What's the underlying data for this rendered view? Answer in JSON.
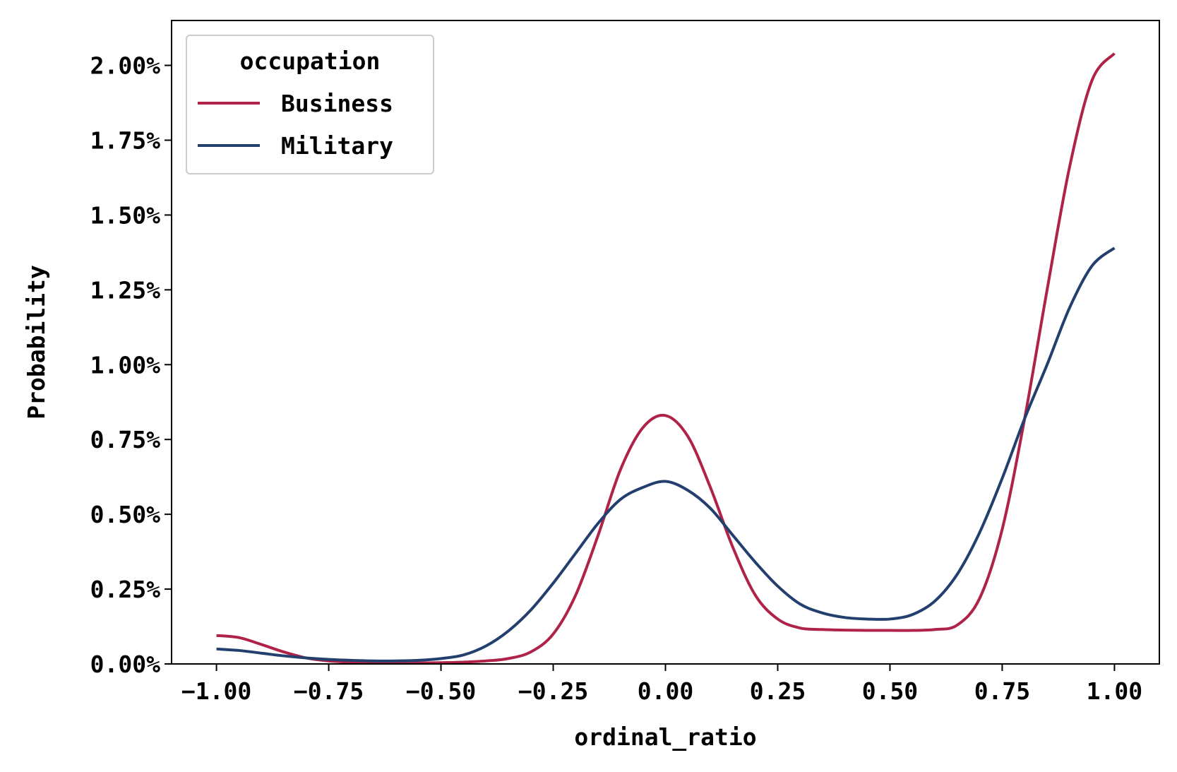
{
  "chart_data": {
    "type": "line",
    "xlabel": "ordinal_ratio",
    "ylabel": "Probability",
    "xlim": [
      -1.1,
      1.1
    ],
    "ylim": [
      0,
      0.0215
    ],
    "x_ticks": [
      -1.0,
      -0.75,
      -0.5,
      -0.25,
      0.0,
      0.25,
      0.5,
      0.75,
      1.0
    ],
    "x_tick_labels": [
      "−1.00",
      "−0.75",
      "−0.50",
      "−0.25",
      "0.00",
      "0.25",
      "0.50",
      "0.75",
      "1.00"
    ],
    "y_ticks": [
      0,
      0.0025,
      0.005,
      0.0075,
      0.01,
      0.0125,
      0.015,
      0.0175,
      0.02
    ],
    "y_tick_labels": [
      "0.00%",
      "0.25%",
      "0.50%",
      "0.75%",
      "1.00%",
      "1.25%",
      "1.50%",
      "1.75%",
      "2.00%"
    ],
    "grid": false,
    "legend": {
      "title": "occupation",
      "placement": "upper-left"
    },
    "x": [
      -1.0,
      -0.95,
      -0.9,
      -0.85,
      -0.8,
      -0.75,
      -0.7,
      -0.65,
      -0.6,
      -0.55,
      -0.5,
      -0.45,
      -0.4,
      -0.35,
      -0.3,
      -0.25,
      -0.2,
      -0.15,
      -0.1,
      -0.05,
      0.0,
      0.05,
      0.1,
      0.15,
      0.2,
      0.25,
      0.3,
      0.35,
      0.4,
      0.45,
      0.5,
      0.55,
      0.6,
      0.65,
      0.7,
      0.75,
      0.8,
      0.85,
      0.9,
      0.95,
      1.0
    ],
    "series": [
      {
        "name": "Business",
        "color": "#ae2347",
        "values": [
          0.00095,
          0.00088,
          0.00065,
          0.0004,
          0.0002,
          0.0001,
          6e-05,
          4e-05,
          3e-05,
          3e-05,
          4e-05,
          6e-05,
          0.0001,
          0.00018,
          0.0004,
          0.001,
          0.0023,
          0.0043,
          0.0065,
          0.0079,
          0.0083,
          0.0076,
          0.0059,
          0.0039,
          0.0023,
          0.0015,
          0.0012,
          0.00115,
          0.00113,
          0.00112,
          0.00112,
          0.00112,
          0.00115,
          0.0013,
          0.0022,
          0.0045,
          0.0082,
          0.0125,
          0.0166,
          0.0195,
          0.0204
        ]
      },
      {
        "name": "Military",
        "color": "#233f6e",
        "values": [
          0.0005,
          0.00045,
          0.00036,
          0.00027,
          0.0002,
          0.00015,
          0.00012,
          0.0001,
          0.0001,
          0.00012,
          0.00018,
          0.0003,
          0.0006,
          0.0011,
          0.0018,
          0.0027,
          0.0037,
          0.0047,
          0.0055,
          0.0059,
          0.0061,
          0.0058,
          0.0052,
          0.0043,
          0.0034,
          0.0026,
          0.002,
          0.0017,
          0.00155,
          0.0015,
          0.0015,
          0.00165,
          0.0021,
          0.003,
          0.0044,
          0.0062,
          0.0082,
          0.01,
          0.0119,
          0.0133,
          0.0139
        ]
      }
    ]
  }
}
